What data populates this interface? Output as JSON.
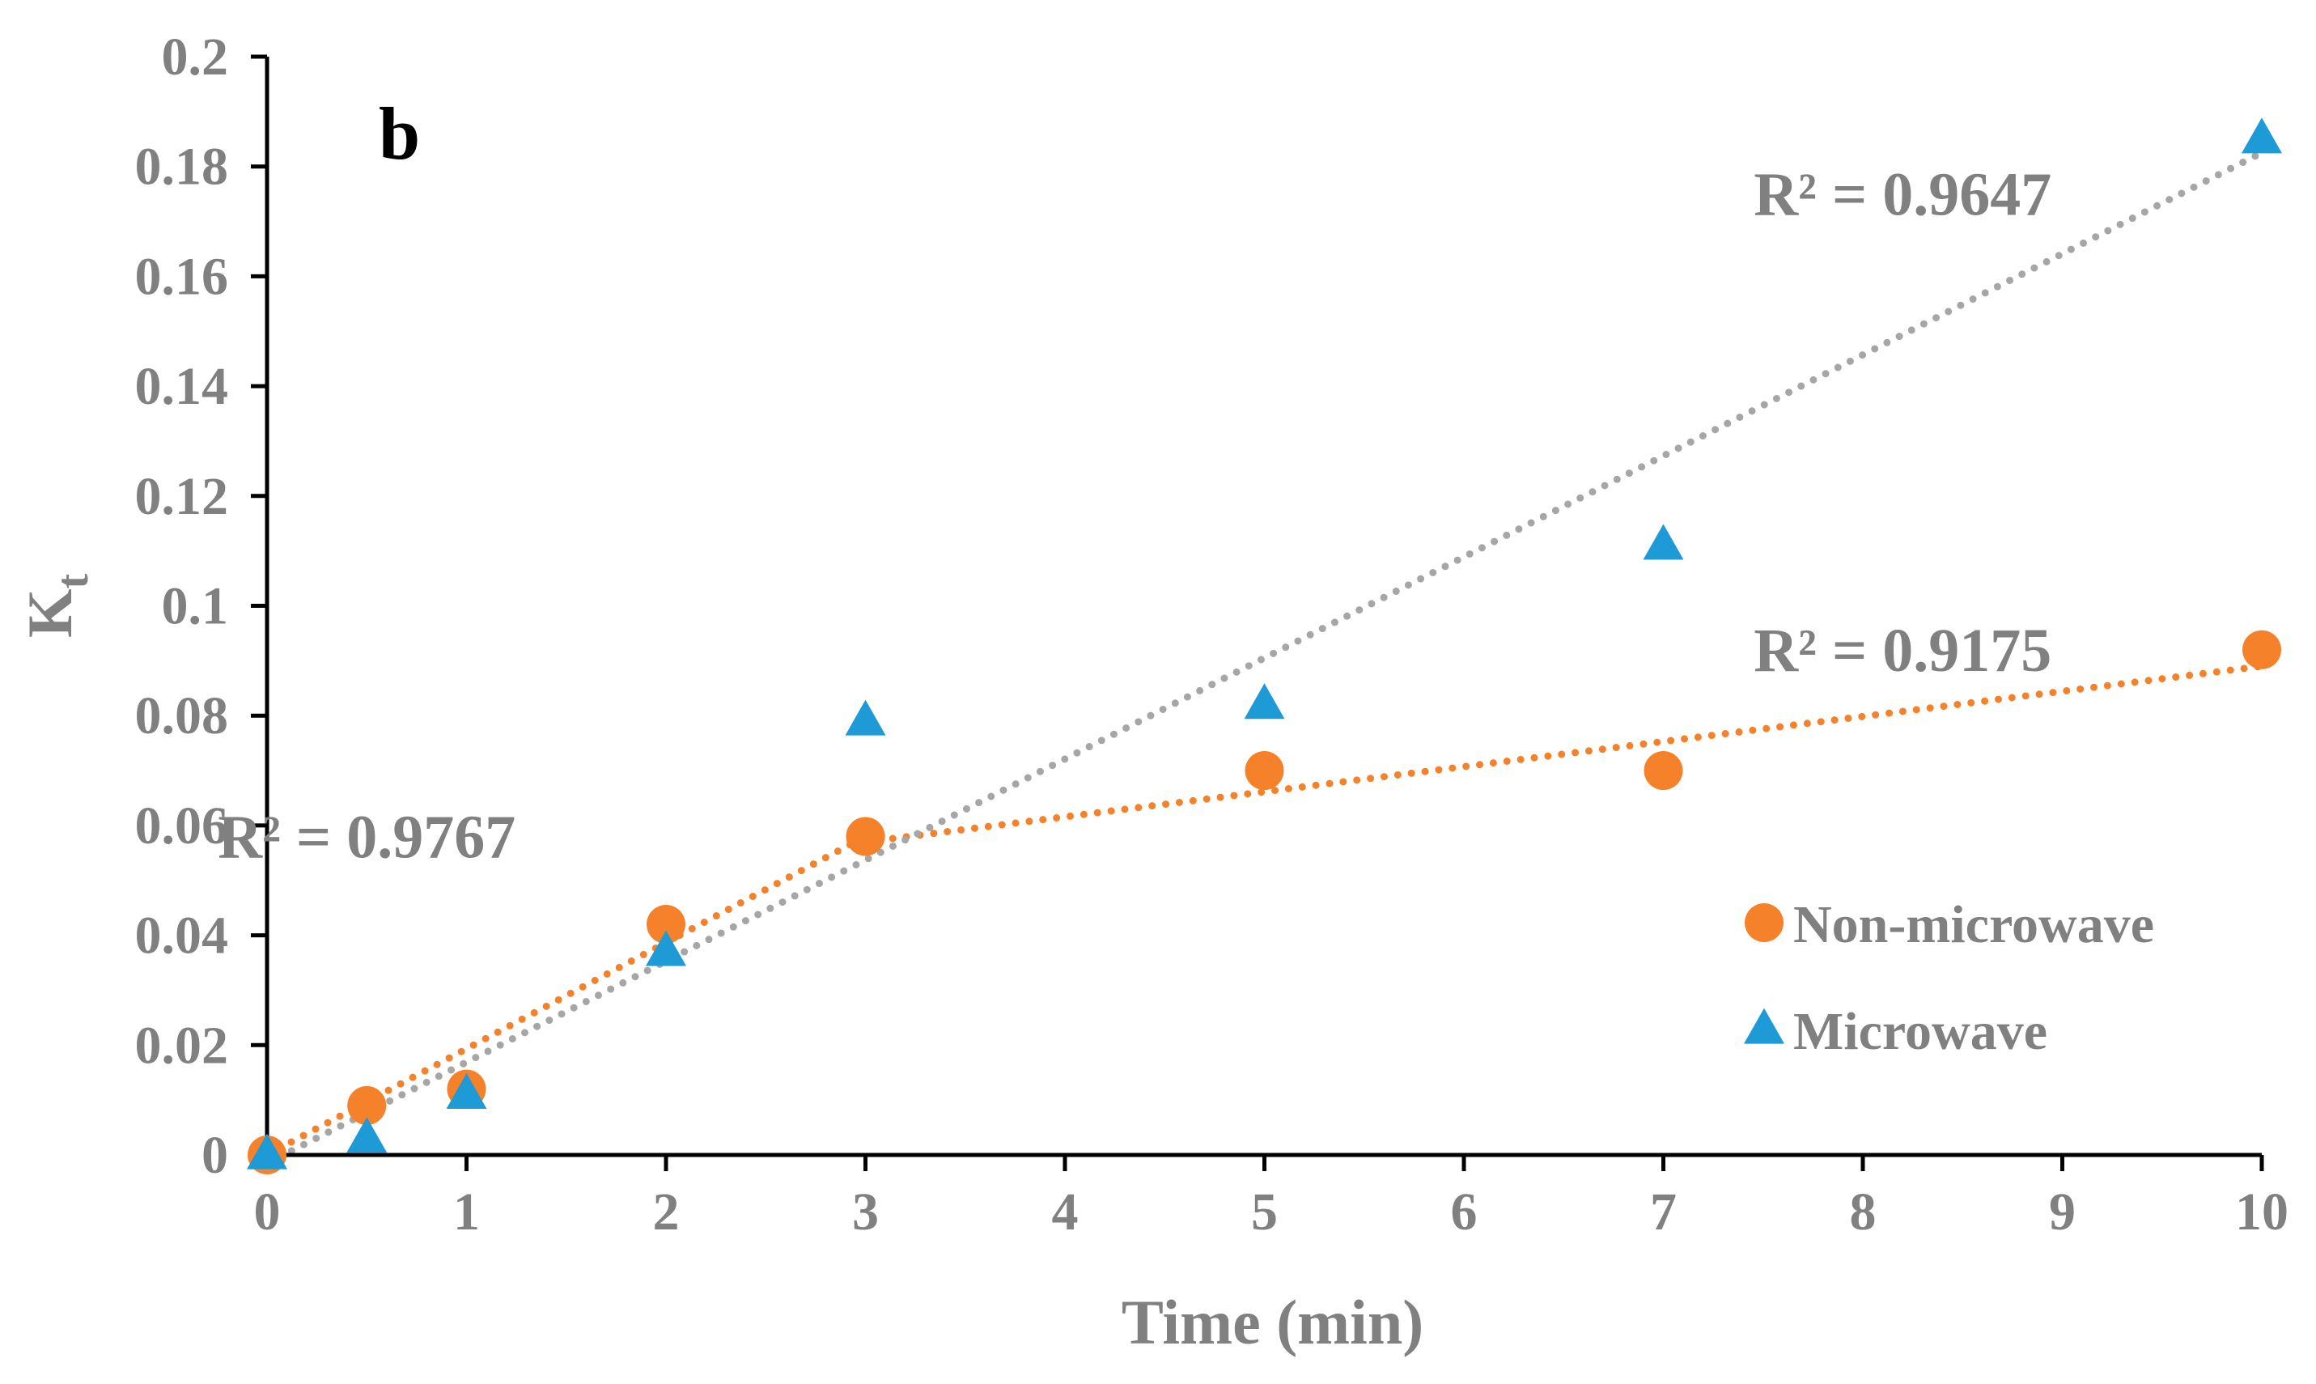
{
  "chart_data": {
    "type": "scatter",
    "panel_label": "b",
    "xlabel": "Time (min)",
    "ylabel_main": "K",
    "ylabel_sub": "t",
    "xlim": [
      0,
      10
    ],
    "ylim": [
      0,
      0.2
    ],
    "xticks": [
      0,
      1,
      2,
      3,
      4,
      5,
      6,
      7,
      8,
      9,
      10
    ],
    "yticks": [
      0,
      0.02,
      0.04,
      0.06,
      0.08,
      0.1,
      0.12,
      0.14,
      0.16,
      0.18,
      0.2
    ],
    "grid": false,
    "legend_position": "right",
    "series": [
      {
        "name": "Non-microwave",
        "marker": "circle",
        "color": "#F5822A",
        "x": [
          0,
          0.5,
          1,
          2,
          3,
          5,
          7,
          10
        ],
        "y": [
          0,
          0.009,
          0.012,
          0.042,
          0.058,
          0.07,
          0.07,
          0.092
        ]
      },
      {
        "name": "Microwave",
        "marker": "triangle",
        "color": "#1E9BD7",
        "x": [
          0,
          0.5,
          1,
          2,
          3,
          5,
          7,
          10
        ],
        "y": [
          0,
          0.003,
          0.011,
          0.037,
          0.079,
          0.082,
          0.111,
          0.185
        ]
      }
    ],
    "trendlines": [
      {
        "name": "Non-microwave early linear fit",
        "color": "#F5822A",
        "style": "dotted",
        "x": [
          0,
          3
        ],
        "y": [
          0.0,
          0.058
        ]
      },
      {
        "name": "Non-microwave late linear fit",
        "color": "#F5822A",
        "style": "dotted",
        "x": [
          3,
          10
        ],
        "y": [
          0.057,
          0.089
        ]
      },
      {
        "name": "Microwave linear fit",
        "color": "#A6A6A6",
        "style": "dotted",
        "x": [
          0,
          10
        ],
        "y": [
          -0.0015,
          0.1825
        ]
      }
    ],
    "annotations": [
      {
        "text": "R² = 0.9767",
        "x": 0.5,
        "y": 0.058
      },
      {
        "text": "R² = 0.9647",
        "x": 8.2,
        "y": 0.175
      },
      {
        "text": "R² = 0.9175",
        "x": 8.2,
        "y": 0.092
      }
    ]
  }
}
